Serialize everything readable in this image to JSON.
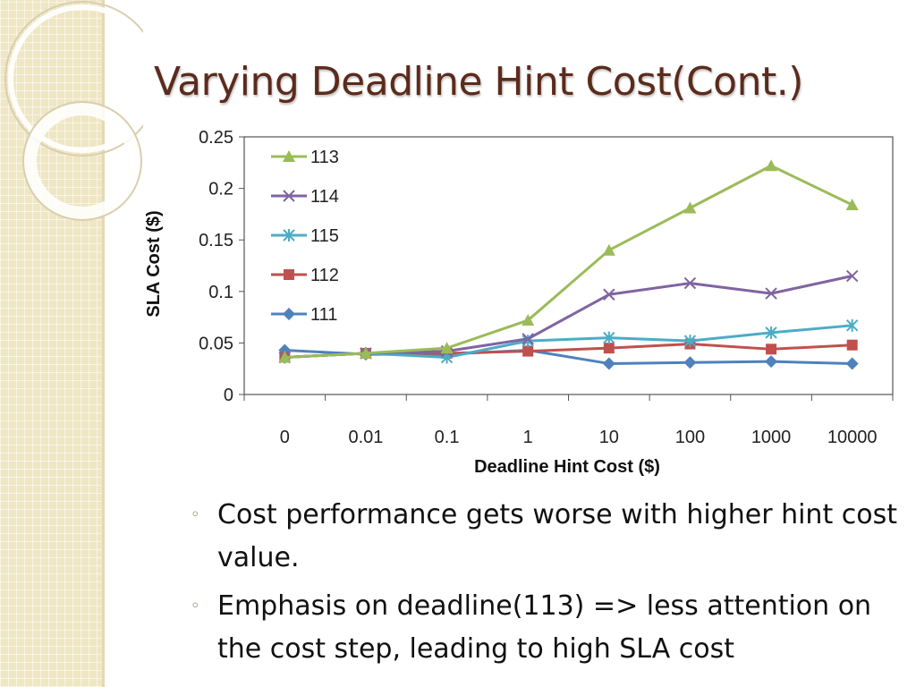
{
  "slide": {
    "title": "Varying Deadline Hint Cost(Cont.)",
    "bullets": [
      "Cost performance gets worse with higher hint cost value.",
      "Emphasis on deadline(113) => less attention on the cost step, leading to high SLA cost"
    ],
    "bullet_marker": "◦"
  },
  "chart_data": {
    "type": "line",
    "title": "",
    "xlabel": "Deadline Hint Cost ($)",
    "ylabel": "SLA Cost ($)",
    "categories": [
      "0",
      "0.01",
      "0.1",
      "1",
      "10",
      "100",
      "1000",
      "10000"
    ],
    "ylim": [
      0,
      0.25
    ],
    "yticks": [
      0,
      0.05,
      0.1,
      0.15,
      0.2,
      0.25
    ],
    "ytick_labels": [
      "0",
      "0.05",
      "0.1",
      "0.15",
      "0.2",
      "0.25"
    ],
    "grid": false,
    "legend_position": "top-left",
    "series": [
      {
        "name": "113",
        "marker": "triangle",
        "color": "#9bbb59",
        "values": [
          0.036,
          0.04,
          0.045,
          0.072,
          0.14,
          0.181,
          0.222,
          0.184
        ]
      },
      {
        "name": "114",
        "marker": "x",
        "color": "#8064a2",
        "values": [
          0.036,
          0.04,
          0.042,
          0.054,
          0.097,
          0.108,
          0.098,
          0.115
        ]
      },
      {
        "name": "115",
        "marker": "star",
        "color": "#4bacc6",
        "values": [
          0.036,
          0.04,
          0.036,
          0.052,
          0.055,
          0.052,
          0.06,
          0.067
        ]
      },
      {
        "name": "112",
        "marker": "square",
        "color": "#c0504d",
        "values": [
          0.036,
          0.04,
          0.04,
          0.042,
          0.045,
          0.049,
          0.044,
          0.048
        ]
      },
      {
        "name": "111",
        "marker": "diamond",
        "color": "#4f81bd",
        "values": [
          0.043,
          0.039,
          0.039,
          0.043,
          0.03,
          0.031,
          0.032,
          0.03
        ]
      }
    ]
  }
}
